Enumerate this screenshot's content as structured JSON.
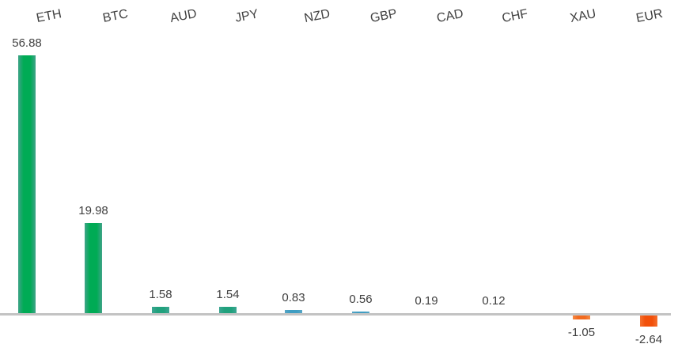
{
  "chart_data": {
    "type": "bar",
    "title": "",
    "xlabel": "",
    "ylabel": "",
    "categories": [
      "ETH",
      "BTC",
      "AUD",
      "JPY",
      "NZD",
      "GBP",
      "CAD",
      "CHF",
      "XAU",
      "EUR"
    ],
    "values": [
      56.88,
      19.98,
      1.58,
      1.54,
      0.83,
      0.56,
      0.19,
      0.12,
      -1.05,
      -2.64
    ],
    "value_labels": [
      "56.88",
      "19.98",
      "1.58",
      "1.54",
      "0.83",
      "0.56",
      "0.19",
      "0.12",
      "-1.05",
      "-2.64"
    ],
    "colors": [
      "#00ab55",
      "#00ab55",
      "#21a17d",
      "#21a17d",
      "#3f9dc2",
      "#3f9dc2",
      "#3f9dc2",
      "#3f9dc2",
      "#f26a1e",
      "#f2500a"
    ],
    "edge_colors": [
      "#40a389",
      "#40a389",
      "#3da693",
      "#3da693",
      "#57a6c6",
      "#57a6c6",
      "#57a6c6",
      "#57a6c6",
      "#f58a45",
      "#f4702f"
    ],
    "baseline": 0,
    "ylim": [
      -3,
      57
    ],
    "grid": false,
    "legend": false,
    "category_label_rotation_deg": -11,
    "axis_color": "#c3c3c3",
    "label_color": "#404040"
  }
}
